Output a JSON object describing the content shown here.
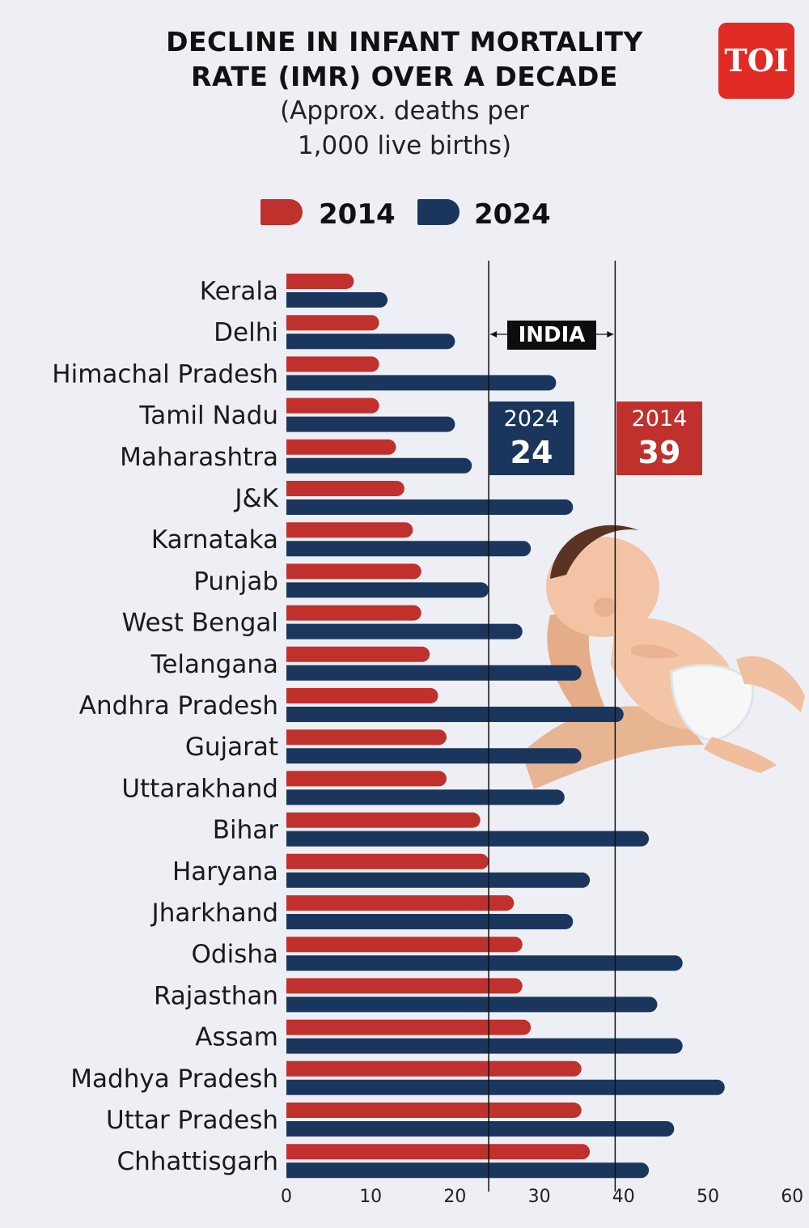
{
  "header": {
    "title_line1": "DECLINE IN INFANT MORTALITY",
    "title_line2": "RATE (IMR) OVER A DECADE",
    "subtitle_line1": "(Approx. deaths per",
    "subtitle_line2": "1,000 live births)"
  },
  "logo": {
    "text": "TOI",
    "color": "#e22a25"
  },
  "legend": [
    {
      "label": "2014",
      "color": "#c0302c"
    },
    {
      "label": "2024",
      "color": "#1b365d"
    }
  ],
  "india": {
    "label": "INDIA",
    "ref_2024": {
      "year": "2024",
      "value": 24
    },
    "ref_2014": {
      "year": "2014",
      "value": 39
    }
  },
  "image": {
    "icon": "baby-in-hands-illustration"
  },
  "chart_data": {
    "type": "bar",
    "orientation": "horizontal",
    "categories": [
      "Kerala",
      "Delhi",
      "Himachal Pradesh",
      "Tamil Nadu",
      "Maharashtra",
      "J&K",
      "Karnataka",
      "Punjab",
      "West Bengal",
      "Telangana",
      "Andhra Pradesh",
      "Gujarat",
      "Uttarakhand",
      "Bihar",
      "Haryana",
      "Jharkhand",
      "Odisha",
      "Rajasthan",
      "Assam",
      "Madhya Pradesh",
      "Uttar Pradesh",
      "Chhattisgarh"
    ],
    "series": [
      {
        "name": "2014",
        "color": "#c0302c",
        "values": [
          8,
          11,
          11,
          11,
          13,
          14,
          15,
          16,
          16,
          17,
          18,
          19,
          19,
          23,
          24,
          27,
          28,
          28,
          29,
          35,
          35,
          36
        ]
      },
      {
        "name": "2024",
        "color": "#1b365d",
        "values": [
          12,
          20,
          32,
          20,
          22,
          34,
          29,
          24,
          28,
          35,
          40,
          35,
          33,
          43,
          36,
          34,
          47,
          44,
          47,
          52,
          46,
          43
        ]
      }
    ],
    "xlim": [
      0,
      60
    ],
    "xticks": [
      0,
      10,
      20,
      30,
      40,
      50,
      60
    ],
    "reference_lines": [
      {
        "label": "2024",
        "value": 24
      },
      {
        "label": "2014",
        "value": 39
      }
    ],
    "grid": false,
    "legend_position": "top-center"
  }
}
